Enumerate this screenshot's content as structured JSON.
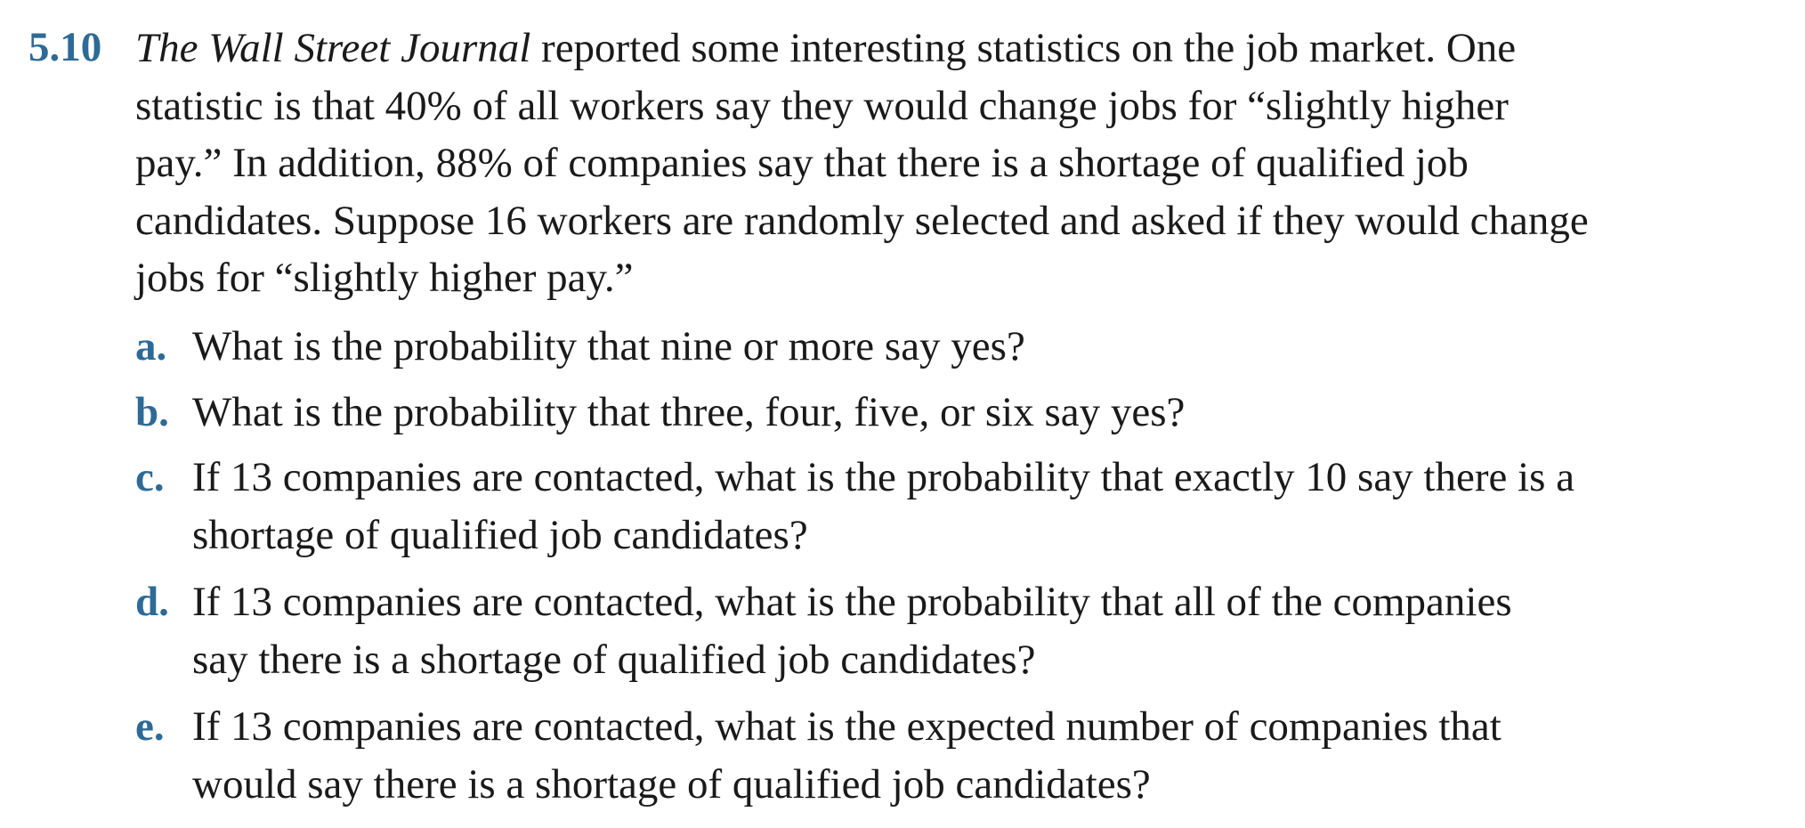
{
  "problem": {
    "number": "5.10",
    "source_title": "The Wall Street Journal",
    "stem_lines": [
      " reported some interesting statistics on the job market. One",
      "statistic is that 40% of all workers say they would change jobs for “slightly higher",
      "pay.” In addition, 88% of companies say that there is a shortage of qualified job",
      "candidates. Suppose 16 workers are randomly selected and asked if they would change",
      "jobs for “slightly higher pay.”"
    ],
    "parts": [
      {
        "letter": "a.",
        "lines": [
          "What is the probability that nine or more say yes?"
        ]
      },
      {
        "letter": "b.",
        "lines": [
          "What is the probability that three, four, five, or six say yes?"
        ]
      },
      {
        "letter": "c.",
        "lines": [
          "If 13 companies are contacted, what is the probability that exactly 10 say there is a",
          "shortage of qualified job candidates?"
        ]
      },
      {
        "letter": "d.",
        "lines": [
          "If 13 companies are contacted, what is the probability that all of the companies",
          "say there is a shortage of qualified job candidates?"
        ]
      },
      {
        "letter": "e.",
        "lines": [
          "If 13 companies are contacted, what is the expected number of companies that",
          "would say there is a shortage of qualified job candidates?"
        ]
      }
    ]
  },
  "colors": {
    "accent": "#2e6a96",
    "text": "#1a1a1a",
    "background": "#ffffff"
  }
}
